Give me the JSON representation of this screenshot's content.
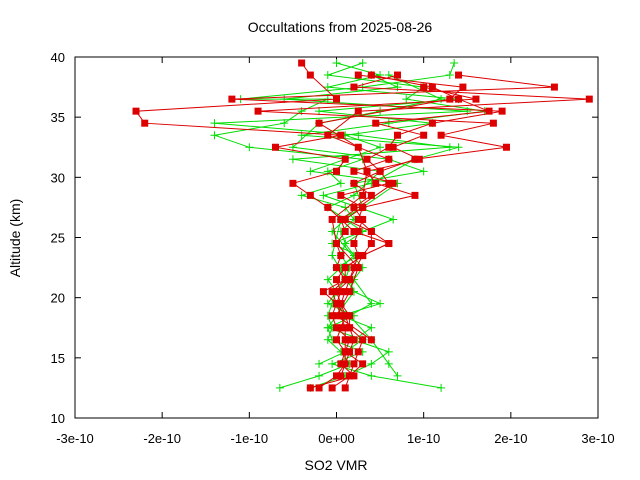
{
  "chart_data": {
    "type": "line",
    "title": "Occultations from 2025-08-26",
    "xlabel": "SO2 VMR",
    "ylabel": "Altitude (km)",
    "xlim": [
      -3e-10,
      3e-10
    ],
    "ylim": [
      10,
      40
    ],
    "x_ticks": [
      -3e-10,
      -2e-10,
      -1e-10,
      0,
      1e-10,
      2e-10,
      3e-10
    ],
    "x_tick_labels": [
      "-3e-10",
      "-2e-10",
      "-1e-10",
      "0e+00",
      "1e-10",
      "2e-10",
      "3e-10"
    ],
    "y_ticks": [
      10,
      15,
      20,
      25,
      30,
      35,
      40
    ],
    "y_tick_labels": [
      "10",
      "15",
      "20",
      "25",
      "30",
      "35",
      "40"
    ],
    "grid": false,
    "legend": "none",
    "series": [
      {
        "color": "#00dd00",
        "marker": "plus",
        "profiles": [
          [
            [
              -6.5e-11,
              12.5
            ],
            [
              -2e-11,
              13.5
            ],
            [
              1.5e-11,
              14.5
            ],
            [
              5e-12,
              15.5
            ],
            [
              -1e-11,
              16.5
            ],
            [
              -5e-12,
              17.5
            ],
            [
              -1e-11,
              18.5
            ],
            [
              -5e-12,
              19.5
            ],
            [
              0,
              20.5
            ],
            [
              1e-11,
              21.5
            ],
            [
              1.5e-11,
              22.5
            ],
            [
              5e-12,
              23.5
            ],
            [
              1e-11,
              24.5
            ],
            [
              5e-12,
              25.5
            ],
            [
              2e-11,
              26.5
            ],
            [
              1e-11,
              27.5
            ],
            [
              -4e-11,
              28.5
            ],
            [
              5e-12,
              29.5
            ],
            [
              -1e-11,
              30.5
            ],
            [
              3e-11,
              31.5
            ],
            [
              -1e-10,
              32.5
            ],
            [
              -1.4e-10,
              33.5
            ],
            [
              -6e-11,
              34.5
            ],
            [
              -4e-11,
              35.5
            ],
            [
              -1e-11,
              36.5
            ],
            [
              -1.1e-10,
              36.5
            ],
            [
              3e-11,
              37.5
            ],
            [
              1.3e-10,
              38.5
            ],
            [
              1.35e-10,
              39.5
            ]
          ],
          [
            [
              -3e-11,
              12.5
            ],
            [
              1e-11,
              13.5
            ],
            [
              4e-11,
              14.5
            ],
            [
              6e-11,
              15.5
            ],
            [
              2e-11,
              16.5
            ],
            [
              4e-11,
              17.5
            ],
            [
              5e-12,
              18.5
            ],
            [
              5e-11,
              19.5
            ],
            [
              2e-11,
              20.5
            ],
            [
              1.5e-11,
              21.5
            ],
            [
              0,
              22.5
            ],
            [
              2.5e-11,
              23.5
            ],
            [
              -5e-12,
              24.5
            ],
            [
              6.5e-11,
              26.5
            ],
            [
              -1.5e-11,
              28.5
            ],
            [
              4e-11,
              29.5
            ],
            [
              9e-11,
              31.5
            ],
            [
              1.4e-10,
              32.5
            ],
            [
              -4e-11,
              33.5
            ],
            [
              6e-11,
              34.5
            ],
            [
              1.7e-10,
              35.5
            ],
            [
              8e-11,
              36.5
            ],
            [
              1e-10,
              37.5
            ],
            [
              -1e-11,
              38.5
            ],
            [
              3e-11,
              39.5
            ]
          ],
          [
            [
              1.2e-10,
              12.5
            ],
            [
              4e-11,
              13.5
            ],
            [
              -5e-12,
              14.5
            ],
            [
              3e-11,
              15.5
            ],
            [
              -5e-12,
              16.5
            ],
            [
              -1e-11,
              17.5
            ],
            [
              2e-11,
              18.5
            ],
            [
              -1e-11,
              19.5
            ],
            [
              0,
              20.5
            ],
            [
              -1e-11,
              21.5
            ],
            [
              5e-12,
              22.5
            ],
            [
              2e-11,
              23.5
            ],
            [
              1e-11,
              24.5
            ],
            [
              3e-11,
              25.5
            ],
            [
              -1e-11,
              27.5
            ],
            [
              2e-11,
              28.5
            ],
            [
              5e-11,
              30.5
            ],
            [
              -5e-11,
              31.5
            ],
            [
              1.3e-10,
              32.5
            ],
            [
              2.5e-11,
              33.5
            ],
            [
              -1.4e-10,
              34.5
            ],
            [
              1.5e-10,
              35.5
            ],
            [
              -6e-11,
              36.5
            ],
            [
              7e-11,
              37.5
            ],
            [
              4e-11,
              38.5
            ]
          ],
          [
            [
              7e-11,
              13.5
            ],
            [
              6e-11,
              14.5
            ],
            [
              4e-11,
              16.5
            ],
            [
              1.5e-11,
              18.5
            ],
            [
              4e-11,
              19.5
            ],
            [
              2e-11,
              21.5
            ],
            [
              3e-11,
              22.5
            ],
            [
              -5e-12,
              25.5
            ],
            [
              1e-11,
              26.5
            ],
            [
              7e-11,
              29.5
            ],
            [
              -3e-11,
              30.5
            ],
            [
              5e-11,
              32.5
            ],
            [
              1e-11,
              33.5
            ],
            [
              1.1e-10,
              34.5
            ],
            [
              -2e-11,
              35.5
            ],
            [
              1.4e-10,
              36.5
            ],
            [
              -1e-11,
              37.5
            ],
            [
              5e-11,
              38.5
            ],
            [
              0,
              39.5
            ]
          ],
          [
            [
              -2e-11,
              14.5
            ],
            [
              1e-11,
              15.5
            ],
            [
              3e-11,
              16.5
            ],
            [
              -1e-11,
              17.5
            ],
            [
              2e-11,
              20.5
            ],
            [
              -5e-12,
              23.5
            ],
            [
              5e-12,
              26.5
            ],
            [
              3e-11,
              27.5
            ],
            [
              2e-11,
              29.5
            ],
            [
              1e-10,
              30.5
            ],
            [
              6e-11,
              31.5
            ],
            [
              -5e-11,
              32.5
            ],
            [
              -2e-11,
              34.5
            ],
            [
              5e-11,
              35.5
            ],
            [
              1.2e-10,
              36.5
            ],
            [
              6e-11,
              38.5
            ]
          ]
        ]
      },
      {
        "color": "#dd0000",
        "marker": "square",
        "profiles": [
          [
            [
              -2e-11,
              12.5
            ],
            [
              0,
              13.5
            ],
            [
              1e-11,
              14.5
            ],
            [
              1e-11,
              15.5
            ],
            [
              0,
              16.5
            ],
            [
              5e-12,
              17.5
            ],
            [
              1e-11,
              18.5
            ],
            [
              0,
              19.5
            ],
            [
              -5e-12,
              20.5
            ],
            [
              1e-11,
              21.5
            ],
            [
              0,
              22.5
            ],
            [
              5e-12,
              23.5
            ],
            [
              0,
              24.5
            ],
            [
              1e-11,
              25.5
            ],
            [
              5e-12,
              26.5
            ],
            [
              -1e-11,
              27.5
            ],
            [
              -3e-11,
              28.5
            ],
            [
              -5e-11,
              29.5
            ],
            [
              0,
              30.5
            ],
            [
              1e-11,
              31.5
            ],
            [
              -7e-11,
              32.5
            ],
            [
              5e-12,
              33.5
            ],
            [
              -2.2e-10,
              34.5
            ],
            [
              -2.3e-10,
              35.5
            ],
            [
              0,
              36.5
            ],
            [
              -3e-11,
              38.5
            ],
            [
              -4e-11,
              39.5
            ]
          ],
          [
            [
              -5e-12,
              12.5
            ],
            [
              1.5e-11,
              13.5
            ],
            [
              2e-11,
              14.5
            ],
            [
              2.5e-11,
              15.5
            ],
            [
              3e-11,
              16.5
            ],
            [
              1.5e-11,
              17.5
            ],
            [
              1.5e-11,
              18.5
            ],
            [
              5e-12,
              19.5
            ],
            [
              1e-11,
              20.5
            ],
            [
              1.5e-11,
              21.5
            ],
            [
              2e-11,
              22.5
            ],
            [
              2.5e-11,
              23.5
            ],
            [
              2e-11,
              24.5
            ],
            [
              2.5e-11,
              25.5
            ],
            [
              3e-11,
              26.5
            ],
            [
              2e-11,
              27.5
            ],
            [
              4e-11,
              28.5
            ],
            [
              2e-11,
              29.5
            ],
            [
              5e-11,
              30.5
            ],
            [
              3.5e-11,
              31.5
            ],
            [
              6e-11,
              32.5
            ],
            [
              7e-11,
              33.5
            ],
            [
              1.1e-10,
              34.5
            ],
            [
              1.9e-10,
              35.5
            ],
            [
              -1.2e-10,
              36.5
            ],
            [
              2.5e-10,
              37.5
            ],
            [
              1.4e-10,
              38.5
            ]
          ],
          [
            [
              1e-11,
              12.5
            ],
            [
              1.5e-11,
              13.5
            ],
            [
              3e-11,
              14.5
            ],
            [
              1e-11,
              15.5
            ],
            [
              1.5e-11,
              16.5
            ],
            [
              0,
              17.5
            ],
            [
              -5e-12,
              18.5
            ],
            [
              0,
              19.5
            ],
            [
              5e-12,
              20.5
            ],
            [
              0,
              21.5
            ],
            [
              1e-11,
              22.5
            ],
            [
              3e-11,
              23.5
            ],
            [
              4e-11,
              24.5
            ],
            [
              4e-11,
              25.5
            ],
            [
              1e-11,
              26.5
            ],
            [
              3e-11,
              27.5
            ],
            [
              5e-12,
              28.5
            ],
            [
              6e-11,
              29.5
            ],
            [
              5e-11,
              30.5
            ],
            [
              9e-11,
              31.5
            ],
            [
              1.95e-10,
              32.5
            ],
            [
              1.2e-10,
              33.5
            ],
            [
              1.8e-10,
              34.5
            ],
            [
              -9e-11,
              35.5
            ],
            [
              1.6e-10,
              36.5
            ],
            [
              1e-10,
              37.5
            ]
          ],
          [
            [
              -3e-11,
              12.5
            ],
            [
              2e-11,
              13.5
            ],
            [
              5e-12,
              14.5
            ],
            [
              1e-11,
              15.5
            ],
            [
              1e-11,
              16.5
            ],
            [
              1e-11,
              17.5
            ],
            [
              5e-12,
              18.5
            ],
            [
              0,
              19.5
            ],
            [
              -1.5e-11,
              20.5
            ],
            [
              1e-11,
              21.5
            ],
            [
              1e-11,
              22.5
            ],
            [
              3e-11,
              23.5
            ],
            [
              6e-11,
              24.5
            ],
            [
              4e-11,
              25.5
            ],
            [
              2.5e-11,
              26.5
            ],
            [
              3e-11,
              27.5
            ],
            [
              9e-11,
              28.5
            ],
            [
              4.5e-11,
              29.5
            ],
            [
              3.5e-11,
              30.5
            ],
            [
              9.5e-11,
              31.5
            ],
            [
              6.5e-11,
              32.5
            ],
            [
              1e-10,
              33.5
            ],
            [
              4.5e-11,
              34.5
            ],
            [
              1.75e-10,
              35.5
            ],
            [
              1.4e-10,
              36.5
            ],
            [
              1.1e-10,
              37.5
            ],
            [
              4e-11,
              38.5
            ]
          ],
          [
            [
              5e-12,
              13.5
            ],
            [
              1.5e-11,
              15.5
            ],
            [
              2e-11,
              16.5
            ],
            [
              1.5e-11,
              17.5
            ],
            [
              1e-11,
              18.5
            ],
            [
              5e-12,
              19.5
            ],
            [
              0,
              20.5
            ],
            [
              1.5e-11,
              21.5
            ],
            [
              3e-11,
              23.5
            ],
            [
              6e-11,
              24.5
            ],
            [
              2e-11,
              25.5
            ],
            [
              5e-12,
              26.5
            ],
            [
              6.5e-11,
              29.5
            ],
            [
              2e-11,
              30.5
            ],
            [
              6e-11,
              31.5
            ],
            [
              -1e-11,
              33.5
            ],
            [
              2.5e-11,
              35.5
            ],
            [
              2.9e-10,
              36.5
            ],
            [
              2e-11,
              37.5
            ],
            [
              7e-11,
              38.5
            ]
          ],
          [
            [
              4e-11,
              16.5
            ],
            [
              0,
              18.5
            ],
            [
              1.5e-11,
              20.5
            ],
            [
              2.5e-11,
              22.5
            ],
            [
              0,
              24.5
            ],
            [
              -5e-12,
              26.5
            ],
            [
              3e-11,
              28.5
            ],
            [
              3.5e-11,
              30.5
            ],
            [
              2.5e-11,
              32.5
            ],
            [
              -2e-11,
              34.5
            ],
            [
              1.3e-10,
              36.5
            ],
            [
              1.45e-10,
              37.5
            ],
            [
              2.5e-11,
              38.5
            ]
          ]
        ]
      }
    ]
  }
}
